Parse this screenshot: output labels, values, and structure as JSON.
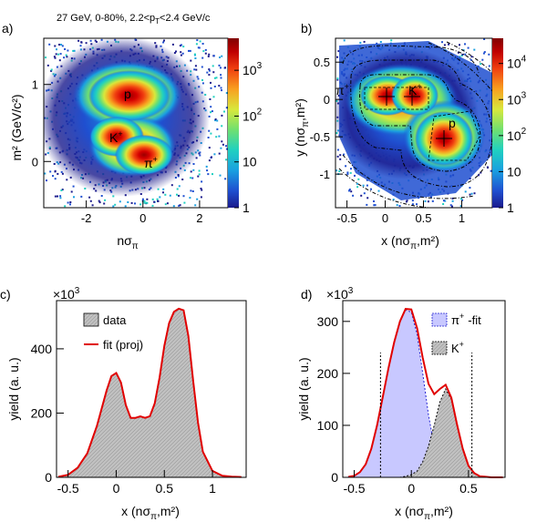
{
  "figure": {
    "panel_a": {
      "tag": "a)",
      "title": "27 GeV, 0-80%, 2.2<p",
      "title_sub": "T",
      "title_tail": "<2.4 GeV/c",
      "xlabel": "nσ",
      "xlabel_sub": "π",
      "ylabel": "m² (GeV/c²)",
      "xticks": [
        "-2",
        "0",
        "2"
      ],
      "yticks": [
        "0",
        "1"
      ],
      "colorbar_ticks": [
        {
          "base": "10",
          "exp": "3",
          "value": 1000
        },
        {
          "base": "10",
          "exp": "2",
          "value": 100
        },
        {
          "base": "10",
          "exp": "",
          "value": 10
        },
        {
          "base": "1",
          "exp": "",
          "value": 1
        }
      ],
      "peak_labels": [
        {
          "text": "p",
          "sup": ""
        },
        {
          "text": "K",
          "sup": "+"
        },
        {
          "text": "π",
          "sup": "+"
        }
      ]
    },
    "panel_b": {
      "tag": "b)",
      "xlabel": "x (nσ",
      "xlabel_sub": "π",
      "xlabel_tail": ",m²)",
      "ylabel": "y (nσ",
      "ylabel_sub": "π",
      "ylabel_tail": ",m²)",
      "xticks": [
        "-0.5",
        "0",
        "0.5",
        "1"
      ],
      "yticks": [
        "0.5",
        "0",
        "-0.5",
        "-1"
      ],
      "colorbar_ticks": [
        {
          "base": "10",
          "exp": "4",
          "value": 10000
        },
        {
          "base": "10",
          "exp": "3",
          "value": 1000
        },
        {
          "base": "10",
          "exp": "2",
          "value": 100
        },
        {
          "base": "10",
          "exp": "",
          "value": 10
        },
        {
          "base": "1",
          "exp": "",
          "value": 1
        }
      ],
      "peak_labels": [
        {
          "text": "π",
          "sup": "+"
        },
        {
          "text": "K",
          "sup": "+"
        },
        {
          "text": "p",
          "sup": ""
        }
      ]
    },
    "panel_c": {
      "tag": "c)",
      "scale": "×10",
      "scale_exp": "3",
      "ylabel": "yield (a. u.)",
      "xlabel": "x (nσ",
      "xlabel_sub": "π",
      "xlabel_tail": ",m²)",
      "legend": [
        {
          "label": "data"
        },
        {
          "label": "fit (proj)"
        }
      ],
      "xticks": [
        "-0.5",
        "0",
        "0.5",
        "1"
      ],
      "yticks": [
        "0",
        "200",
        "400"
      ]
    },
    "panel_d": {
      "tag": "d)",
      "scale": "×10",
      "scale_exp": "3",
      "ylabel": "yield (a. u.)",
      "xlabel": "x (nσ",
      "xlabel_sub": "π",
      "xlabel_tail": ",m²)",
      "legend": [
        {
          "label": "π",
          "sup": "+",
          "extra": "-fit"
        },
        {
          "label": "K",
          "sup": "+",
          "extra": ""
        }
      ],
      "xticks": [
        "-0.5",
        "0",
        "0.5"
      ],
      "yticks": [
        "0",
        "100",
        "200",
        "300"
      ]
    }
  },
  "colors": {
    "data_fill": "#c0c0c0",
    "fit_line": "#e00000",
    "pion_fill": "#c8c8ff",
    "pion_line": "#2020d0",
    "kaon_fill": "#b8b8b8",
    "colormap": [
      "#1a1a8c",
      "#1f4fd0",
      "#1aa0e0",
      "#20d0c0",
      "#70e070",
      "#d8e83c",
      "#f8a020",
      "#f04010",
      "#c00000",
      "#800000"
    ]
  },
  "chart_data": [
    {
      "type": "heatmap",
      "panel": "a",
      "xlabel": "nσπ",
      "ylabel": "m² (GeV/c²)",
      "xlim": [
        -3.5,
        3.0
      ],
      "ylim": [
        -0.6,
        1.6
      ],
      "zscale": "log",
      "zlim": [
        1,
        5000
      ],
      "peaks": [
        {
          "name": "p",
          "x": -0.8,
          "y": 0.88
        },
        {
          "name": "K+",
          "x": -0.6,
          "y": 0.24
        },
        {
          "name": "π+",
          "x": 0.2,
          "y": 0.02
        }
      ]
    },
    {
      "type": "heatmap",
      "panel": "b",
      "xlabel": "x (nσπ,m²)",
      "ylabel": "y (nσπ,m²)",
      "xlim": [
        -0.65,
        1.4
      ],
      "ylim": [
        -1.45,
        0.82
      ],
      "zscale": "log",
      "zlim": [
        1,
        50000
      ],
      "peaks": [
        {
          "name": "π+",
          "x": 0.0,
          "y": 0.0
        },
        {
          "name": "K+",
          "x": 0.3,
          "y": 0.0
        },
        {
          "name": "p",
          "x": 0.7,
          "y": -0.5
        }
      ]
    },
    {
      "type": "area",
      "panel": "c",
      "xlabel": "x (nσπ,m²)",
      "ylabel": "yield (a. u.) ×10³",
      "xlim": [
        -0.62,
        1.35
      ],
      "ylim": [
        0,
        550
      ],
      "x": [
        -0.6,
        -0.5,
        -0.4,
        -0.3,
        -0.2,
        -0.1,
        -0.05,
        0.0,
        0.05,
        0.1,
        0.15,
        0.2,
        0.25,
        0.3,
        0.35,
        0.4,
        0.45,
        0.5,
        0.55,
        0.6,
        0.65,
        0.7,
        0.75,
        0.8,
        0.85,
        0.9,
        1.0,
        1.1,
        1.2,
        1.3
      ],
      "series": [
        {
          "name": "data",
          "values": [
            2,
            8,
            30,
            75,
            160,
            270,
            315,
            325,
            295,
            225,
            185,
            185,
            190,
            185,
            190,
            230,
            310,
            410,
            480,
            515,
            525,
            520,
            440,
            300,
            170,
            80,
            20,
            5,
            2,
            1
          ]
        },
        {
          "name": "fit (proj)",
          "values": [
            2,
            8,
            30,
            75,
            160,
            270,
            315,
            325,
            295,
            225,
            185,
            185,
            190,
            185,
            190,
            230,
            310,
            410,
            480,
            515,
            525,
            520,
            440,
            300,
            170,
            80,
            20,
            5,
            2,
            1
          ]
        }
      ]
    },
    {
      "type": "area",
      "panel": "d",
      "xlabel": "x (nσπ,m²)",
      "ylabel": "yield (a. u.) ×10³",
      "xlim": [
        -0.6,
        0.82
      ],
      "ylim": [
        0,
        340
      ],
      "vlines": [
        -0.27,
        0.53
      ],
      "x": [
        -0.55,
        -0.5,
        -0.45,
        -0.4,
        -0.35,
        -0.3,
        -0.25,
        -0.2,
        -0.15,
        -0.1,
        -0.05,
        0.0,
        0.05,
        0.1,
        0.15,
        0.2,
        0.25,
        0.3,
        0.35,
        0.4,
        0.45,
        0.5,
        0.55,
        0.6,
        0.65,
        0.7,
        0.75,
        0.8
      ],
      "series": [
        {
          "name": "π+-fit",
          "values": [
            1,
            3,
            10,
            25,
            55,
            100,
            155,
            210,
            260,
            300,
            322,
            318,
            275,
            200,
            120,
            60,
            25,
            8,
            3,
            1,
            0,
            0,
            0,
            0,
            0,
            0,
            0,
            0
          ]
        },
        {
          "name": "K+",
          "values": [
            0,
            0,
            0,
            0,
            0,
            0,
            0,
            0,
            0,
            0,
            2,
            5,
            12,
            30,
            60,
            100,
            145,
            170,
            150,
            100,
            55,
            22,
            8,
            2,
            1,
            0,
            0,
            0
          ]
        },
        {
          "name": "fit",
          "values": [
            1,
            3,
            10,
            25,
            55,
            100,
            155,
            210,
            260,
            300,
            324,
            323,
            287,
            230,
            180,
            160,
            170,
            178,
            153,
            101,
            55,
            22,
            8,
            2,
            1,
            0,
            0,
            0
          ]
        }
      ]
    }
  ]
}
